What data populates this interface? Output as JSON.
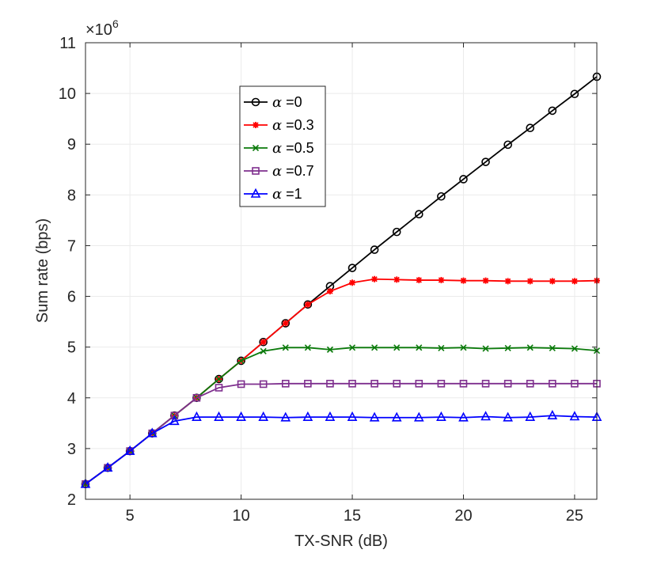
{
  "chart_data": {
    "type": "line",
    "title": "",
    "xlabel": "TX-SNR (dB)",
    "ylabel": "Sum rate  (bps)",
    "xlim": [
      3,
      26
    ],
    "ylim": [
      2,
      11
    ],
    "xticks": [
      5,
      10,
      15,
      20,
      25
    ],
    "yticks": [
      2,
      3,
      4,
      5,
      6,
      7,
      8,
      9,
      10,
      11
    ],
    "y_multiplier_base": "×10",
    "y_multiplier_exponent": "6",
    "grid": true,
    "legend_position": "upper-left-inside",
    "x": [
      3,
      4,
      5,
      6,
      7,
      8,
      9,
      10,
      11,
      12,
      13,
      14,
      15,
      16,
      17,
      18,
      19,
      20,
      21,
      22,
      23,
      24,
      25,
      26
    ],
    "series": [
      {
        "name_symbol": "α",
        "name_value": " =0",
        "color": "#000000",
        "marker": "circle",
        "values": [
          2.3,
          2.62,
          2.95,
          3.3,
          3.65,
          4.0,
          4.37,
          4.73,
          5.1,
          5.47,
          5.84,
          6.2,
          6.56,
          6.92,
          7.27,
          7.62,
          7.97,
          8.31,
          8.65,
          8.99,
          9.32,
          9.66,
          9.99,
          10.33
        ]
      },
      {
        "name_symbol": "α",
        "name_value": " =0.3",
        "color": "#ff0000",
        "marker": "star",
        "values": [
          2.3,
          2.62,
          2.95,
          3.3,
          3.65,
          4.0,
          4.37,
          4.73,
          5.1,
          5.47,
          5.84,
          6.1,
          6.27,
          6.34,
          6.33,
          6.32,
          6.32,
          6.31,
          6.31,
          6.3,
          6.3,
          6.3,
          6.3,
          6.31
        ]
      },
      {
        "name_symbol": "α",
        "name_value": " =0.5",
        "color": "#0a7a0a",
        "marker": "x",
        "values": [
          2.3,
          2.62,
          2.95,
          3.3,
          3.65,
          4.0,
          4.37,
          4.73,
          4.92,
          4.99,
          4.99,
          4.95,
          4.99,
          4.99,
          4.99,
          4.99,
          4.98,
          4.99,
          4.97,
          4.98,
          4.99,
          4.98,
          4.97,
          4.93
        ]
      },
      {
        "name_symbol": "α",
        "name_value": " =0.7",
        "color": "#7e2f8e",
        "marker": "square",
        "values": [
          2.3,
          2.62,
          2.95,
          3.3,
          3.65,
          4.0,
          4.2,
          4.27,
          4.27,
          4.28,
          4.28,
          4.28,
          4.28,
          4.28,
          4.28,
          4.28,
          4.28,
          4.28,
          4.28,
          4.28,
          4.28,
          4.28,
          4.28,
          4.28
        ]
      },
      {
        "name_symbol": "α",
        "name_value": " =1",
        "color": "#0000ff",
        "marker": "triangle",
        "values": [
          2.3,
          2.62,
          2.95,
          3.3,
          3.54,
          3.62,
          3.62,
          3.62,
          3.62,
          3.61,
          3.62,
          3.62,
          3.62,
          3.61,
          3.61,
          3.61,
          3.62,
          3.61,
          3.63,
          3.61,
          3.62,
          3.65,
          3.63,
          3.62
        ]
      }
    ]
  }
}
